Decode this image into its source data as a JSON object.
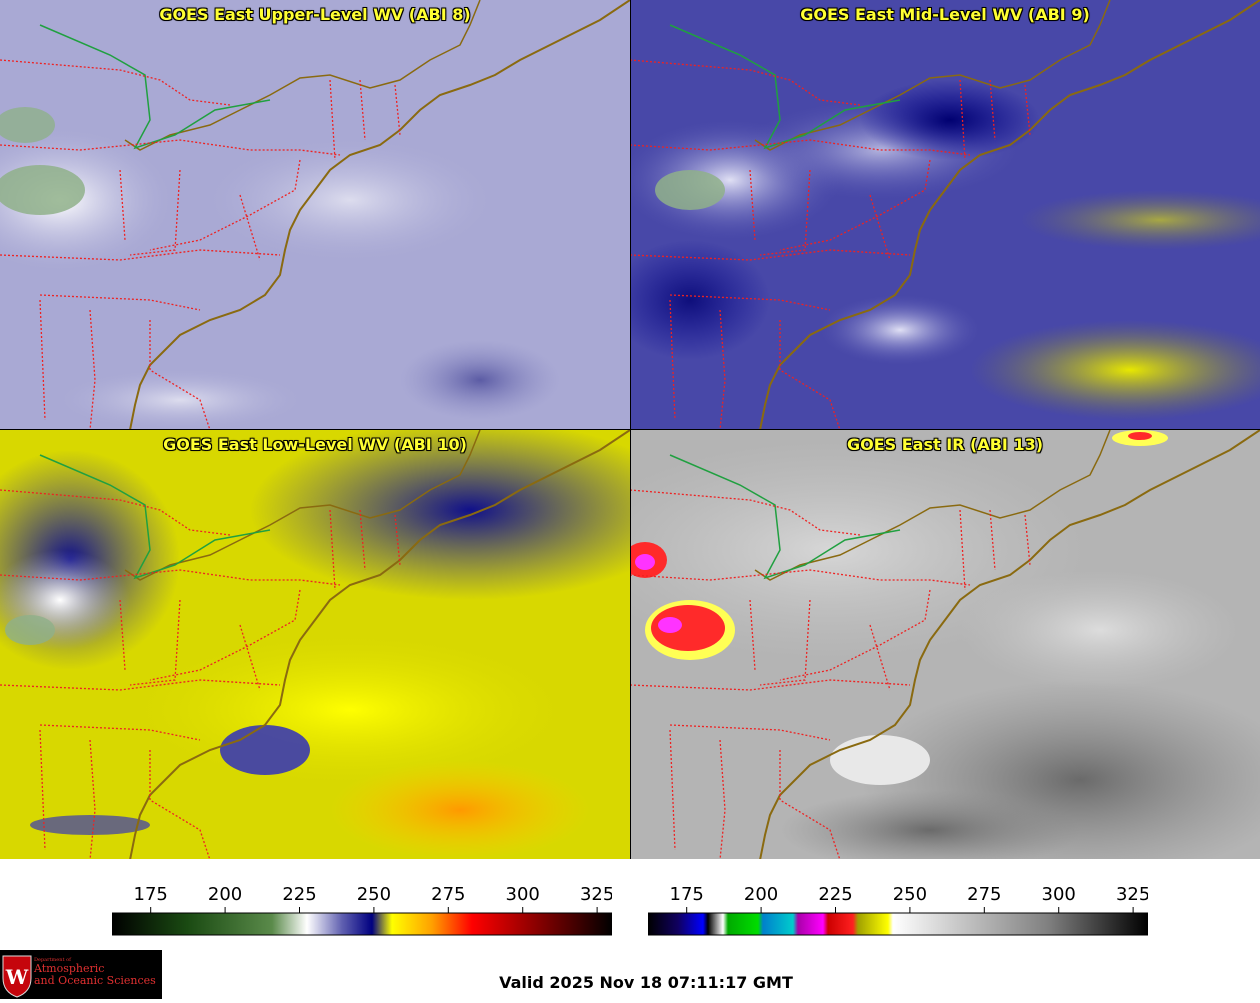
{
  "panels": {
    "upper": {
      "title": "GOES East Upper-Level WV (ABI 8)"
    },
    "mid": {
      "title": "GOES East Mid-Level WV (ABI 9)"
    },
    "low": {
      "title": "GOES East Low-Level WV (ABI 10)"
    },
    "ir": {
      "title": "GOES East IR (ABI 13)"
    }
  },
  "colorbars": {
    "wv": {
      "ticks": [
        "175",
        "200",
        "225",
        "250",
        "275",
        "300",
        "325"
      ],
      "range": [
        162,
        330
      ],
      "colors": [
        "#000000",
        "#1a4a12",
        "#5a8a4a",
        "#ffffff",
        "#4040a0",
        "#000080",
        "#ffff00",
        "#ffa000",
        "#ff0000",
        "#800000",
        "#000000"
      ]
    },
    "ir": {
      "ticks": [
        "175",
        "200",
        "225",
        "250",
        "275",
        "300",
        "325"
      ],
      "range": [
        162,
        330
      ],
      "colors": [
        "#000000",
        "#0000ff",
        "#ffffff",
        "#00cc00",
        "#0099cc",
        "#cc00cc",
        "#ff0000",
        "#ffff00",
        "#ffffff",
        "#000000"
      ]
    }
  },
  "logo": {
    "line1": "Department of",
    "line2": "Atmospheric",
    "line3": "and Oceanic Sciences",
    "crest_letter": "W"
  },
  "valid_time": "Valid 2025 Nov 18 07:11:17 GMT"
}
